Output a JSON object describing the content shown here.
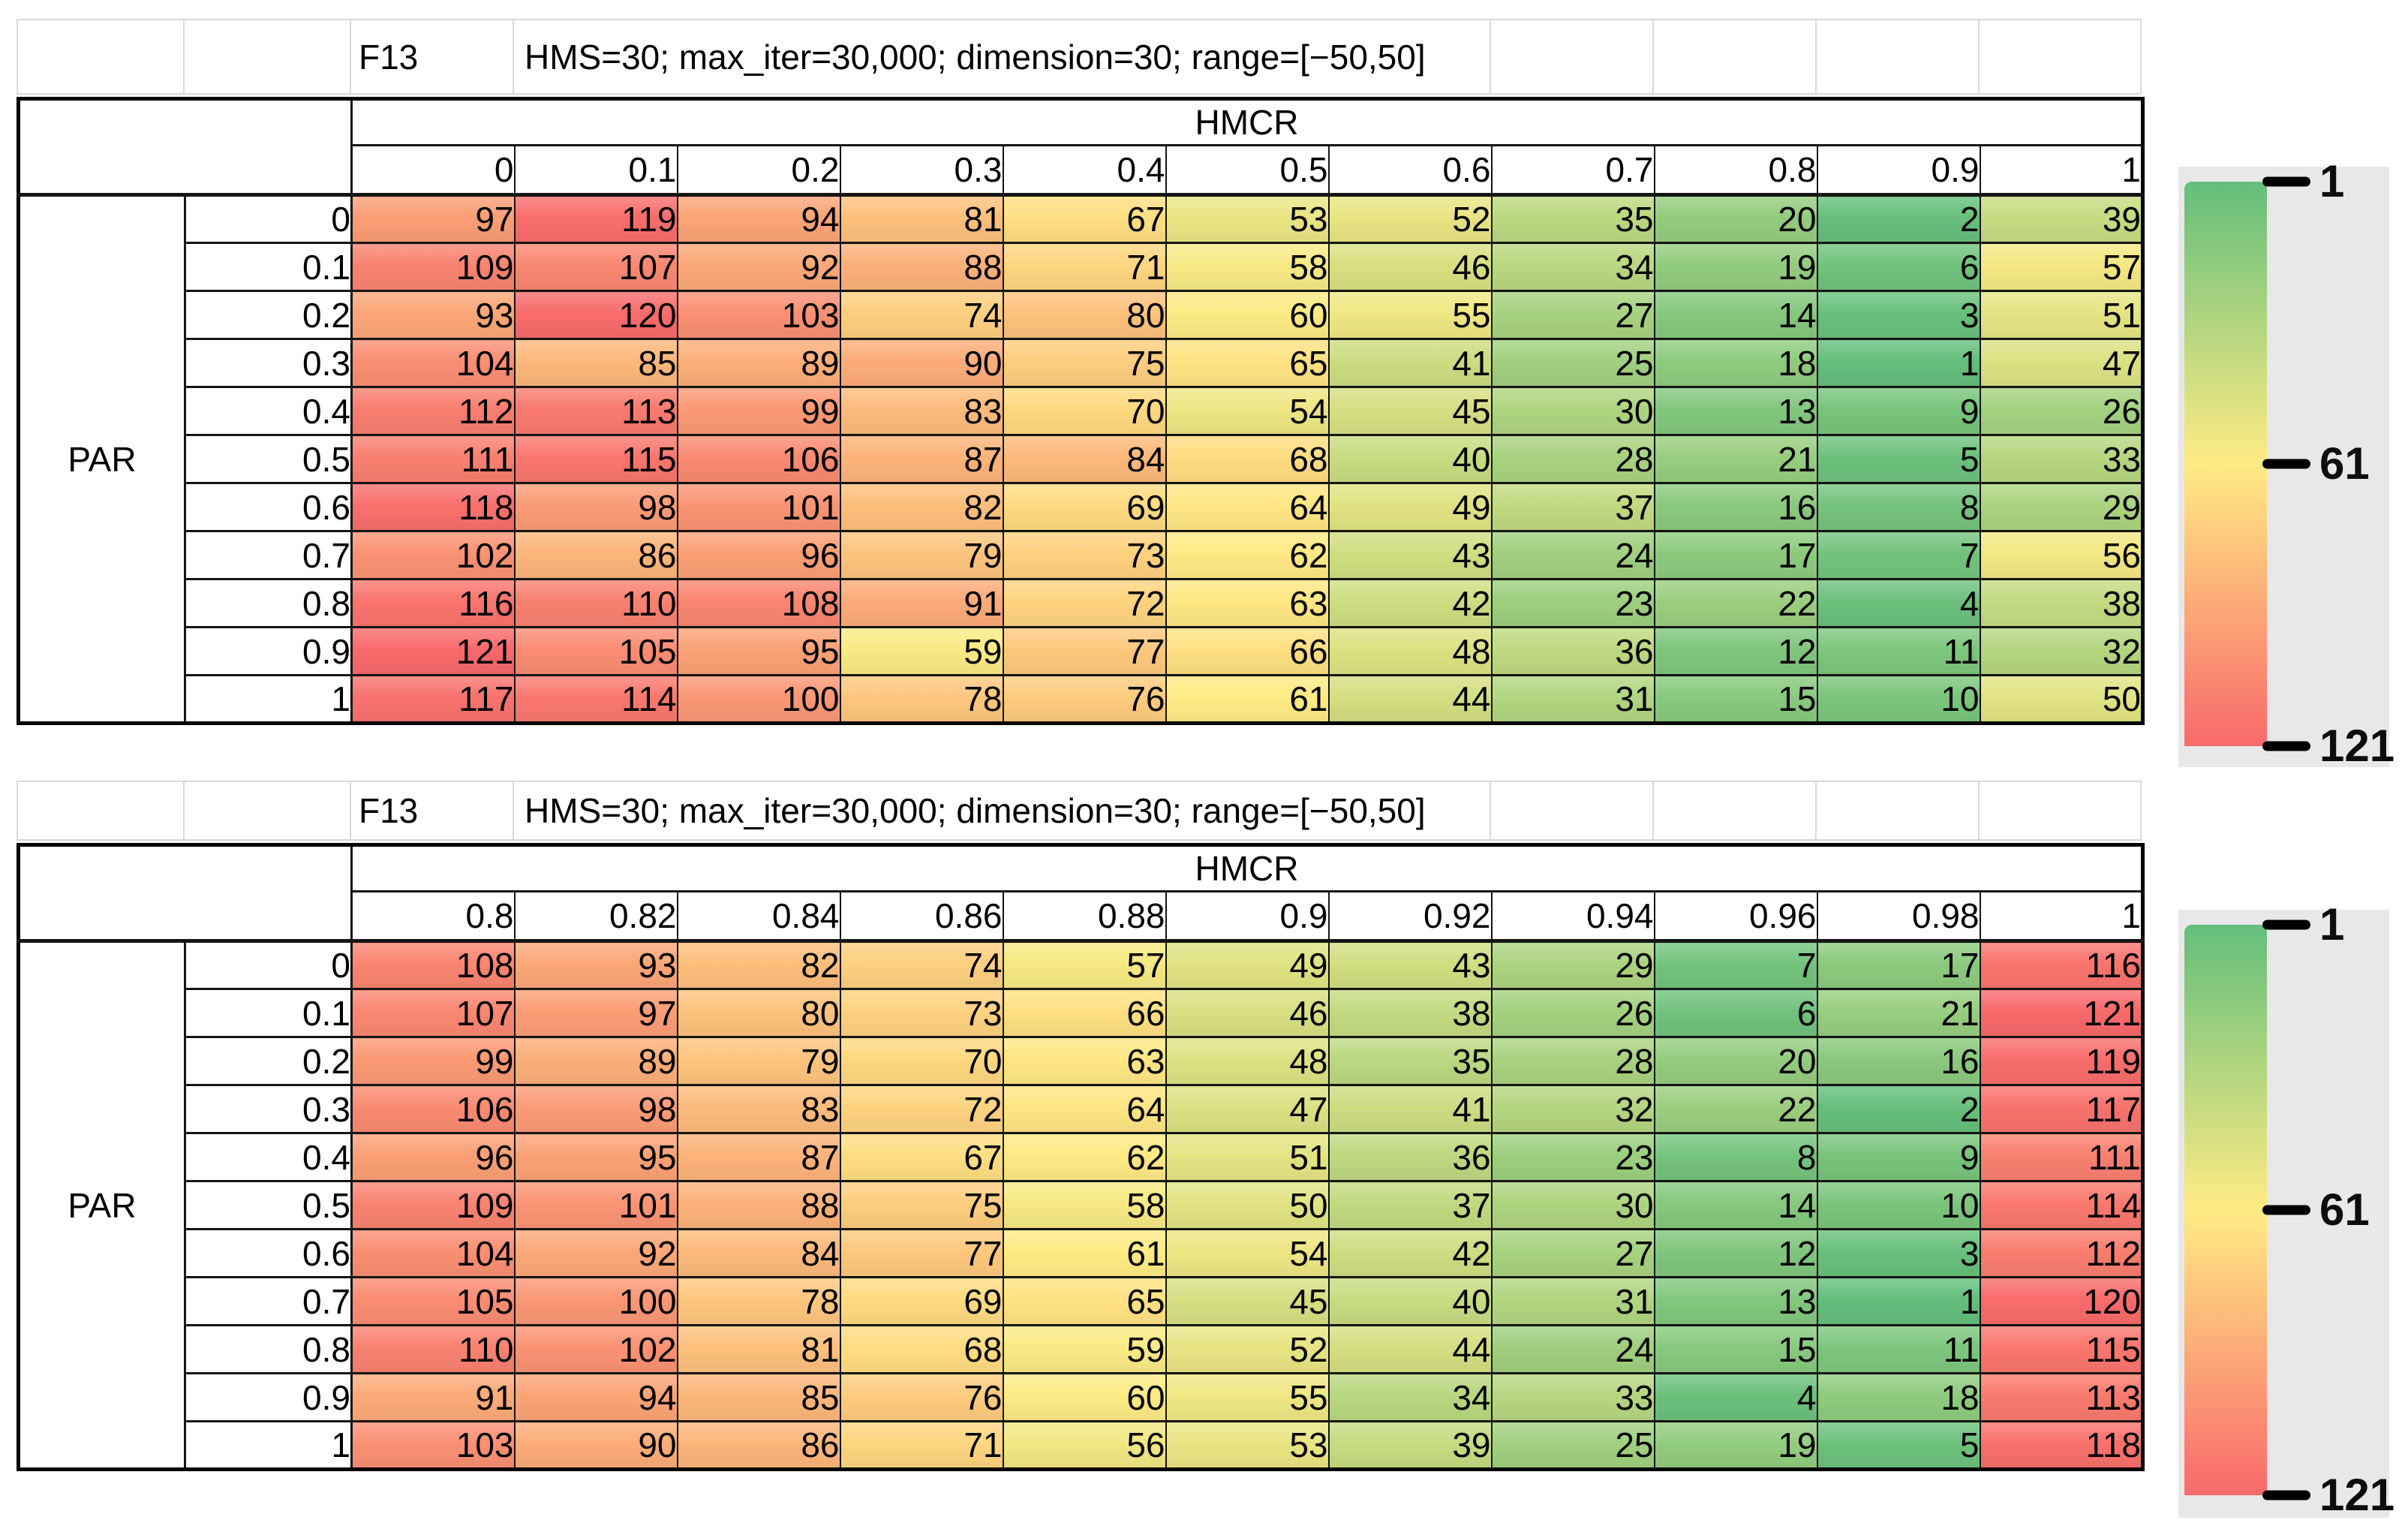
{
  "page": {
    "background": "#ffffff"
  },
  "color_scale": {
    "min_value": 1,
    "min_color": "#63BE7B",
    "mid_value": 61,
    "mid_color": "#FFEB84",
    "max_value": 121,
    "max_color": "#F8696B"
  },
  "legend": {
    "tick_labels": [
      "1",
      "61",
      "121"
    ],
    "tick_values": [
      1,
      61,
      121
    ],
    "gradient_stops": [
      "#63BE7B",
      "#FFEB84",
      "#F8696B"
    ],
    "panel_color": "#e8e8e8",
    "position": "right"
  },
  "chart_data": [
    {
      "type": "heatmap",
      "function_label": "F13",
      "settings_text": "HMS=30; max_iter=30,000; dimension=30; range=[−50,50]",
      "x_axis_label": "HMCR",
      "y_axis_label": "PAR",
      "x_tick_labels": [
        "0",
        "0.1",
        "0.2",
        "0.3",
        "0.4",
        "0.5",
        "0.6",
        "0.7",
        "0.8",
        "0.9",
        "1"
      ],
      "y_tick_labels": [
        "0",
        "0.1",
        "0.2",
        "0.3",
        "0.4",
        "0.5",
        "0.6",
        "0.7",
        "0.8",
        "0.9",
        "1"
      ],
      "value_range": [
        1,
        121
      ],
      "values": [
        [
          97,
          119,
          94,
          81,
          67,
          53,
          52,
          35,
          20,
          2,
          39
        ],
        [
          109,
          107,
          92,
          88,
          71,
          58,
          46,
          34,
          19,
          6,
          57
        ],
        [
          93,
          120,
          103,
          74,
          80,
          60,
          55,
          27,
          14,
          3,
          51
        ],
        [
          104,
          85,
          89,
          90,
          75,
          65,
          41,
          25,
          18,
          1,
          47
        ],
        [
          112,
          113,
          99,
          83,
          70,
          54,
          45,
          30,
          13,
          9,
          26
        ],
        [
          111,
          115,
          106,
          87,
          84,
          68,
          40,
          28,
          21,
          5,
          33
        ],
        [
          118,
          98,
          101,
          82,
          69,
          64,
          49,
          37,
          16,
          8,
          29
        ],
        [
          102,
          86,
          96,
          79,
          73,
          62,
          43,
          24,
          17,
          7,
          56
        ],
        [
          116,
          110,
          108,
          91,
          72,
          63,
          42,
          23,
          22,
          4,
          38
        ],
        [
          121,
          105,
          95,
          59,
          77,
          66,
          48,
          36,
          12,
          11,
          32
        ],
        [
          117,
          114,
          100,
          78,
          76,
          61,
          44,
          31,
          15,
          10,
          50
        ]
      ]
    },
    {
      "type": "heatmap",
      "function_label": "F13",
      "settings_text": "HMS=30; max_iter=30,000; dimension=30; range=[−50,50]",
      "x_axis_label": "HMCR",
      "y_axis_label": "PAR",
      "x_tick_labels": [
        "0.8",
        "0.82",
        "0.84",
        "0.86",
        "0.88",
        "0.9",
        "0.92",
        "0.94",
        "0.96",
        "0.98",
        "1"
      ],
      "y_tick_labels": [
        "0",
        "0.1",
        "0.2",
        "0.3",
        "0.4",
        "0.5",
        "0.6",
        "0.7",
        "0.8",
        "0.9",
        "1"
      ],
      "value_range": [
        1,
        121
      ],
      "values": [
        [
          108,
          93,
          82,
          74,
          57,
          49,
          43,
          29,
          7,
          17,
          116
        ],
        [
          107,
          97,
          80,
          73,
          66,
          46,
          38,
          26,
          6,
          21,
          121
        ],
        [
          99,
          89,
          79,
          70,
          63,
          48,
          35,
          28,
          20,
          16,
          119
        ],
        [
          106,
          98,
          83,
          72,
          64,
          47,
          41,
          32,
          22,
          2,
          117
        ],
        [
          96,
          95,
          87,
          67,
          62,
          51,
          36,
          23,
          8,
          9,
          111
        ],
        [
          109,
          101,
          88,
          75,
          58,
          50,
          37,
          30,
          14,
          10,
          114
        ],
        [
          104,
          92,
          84,
          77,
          61,
          54,
          42,
          27,
          12,
          3,
          112
        ],
        [
          105,
          100,
          78,
          69,
          65,
          45,
          40,
          31,
          13,
          1,
          120
        ],
        [
          110,
          102,
          81,
          68,
          59,
          52,
          44,
          24,
          15,
          11,
          115
        ],
        [
          91,
          94,
          85,
          76,
          60,
          55,
          34,
          33,
          4,
          18,
          113
        ],
        [
          103,
          90,
          86,
          71,
          56,
          53,
          39,
          25,
          19,
          5,
          118
        ]
      ]
    }
  ]
}
